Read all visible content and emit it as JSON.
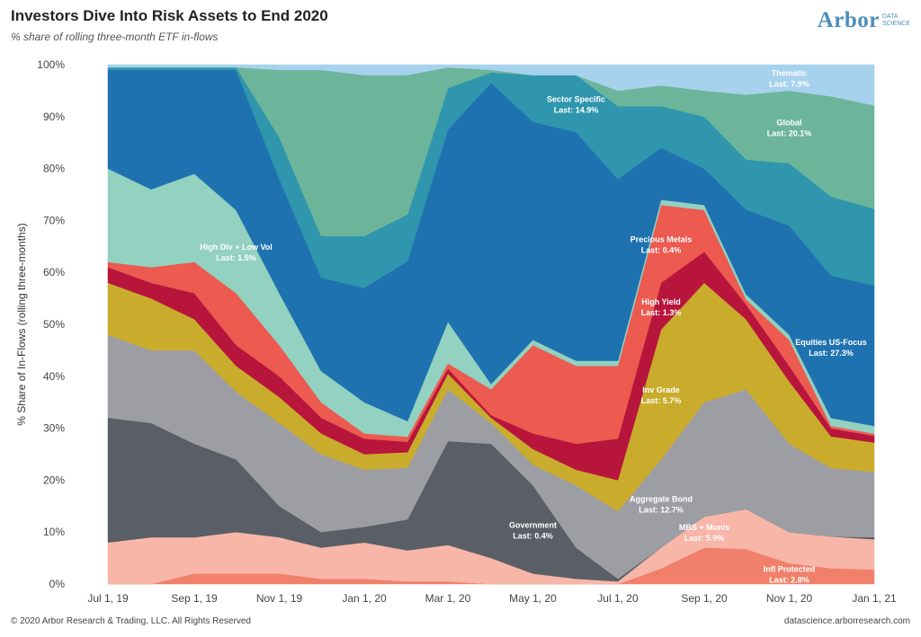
{
  "header": {
    "title": "Investors Dive Into Risk Assets to End 2020",
    "subtitle": "% share of rolling three-month ETF in-flows"
  },
  "logo": {
    "word": "Arbor",
    "sub_line1": "DATA",
    "sub_line2": "SCIENCE"
  },
  "footer": {
    "copyright": "© 2020 Arbor Research & Trading, LLC. All Rights Reserved",
    "site": "datascience.arborresearch.com"
  },
  "chart_data": {
    "type": "area",
    "stacked": true,
    "normalized": true,
    "title": "Investors Dive Into Risk Assets to End 2020",
    "subtitle": "% share of rolling three-month ETF in-flows",
    "ylabel": "% Share of In-Flows (rolling three-months)",
    "ylim": [
      0,
      100
    ],
    "yticks": [
      "0%",
      "10%",
      "20%",
      "30%",
      "40%",
      "50%",
      "60%",
      "70%",
      "80%",
      "90%",
      "100%"
    ],
    "xticks": [
      "Jul 1, 19",
      "Sep 1, 19",
      "Nov 1, 19",
      "Jan 1, 20",
      "Mar 1, 20",
      "May 1, 20",
      "Jul 1, 20",
      "Sep 1, 20",
      "Nov 1, 20",
      "Jan 1, 21"
    ],
    "x": [
      "2019-07-01",
      "2019-08-01",
      "2019-09-01",
      "2019-10-01",
      "2019-11-01",
      "2019-12-01",
      "2020-01-01",
      "2020-02-01",
      "2020-03-01",
      "2020-04-01",
      "2020-05-01",
      "2020-06-01",
      "2020-07-01",
      "2020-08-01",
      "2020-09-01",
      "2020-10-01",
      "2020-11-01",
      "2020-12-01",
      "2021-01-01"
    ],
    "grid": false,
    "legend": "none (direct labels)",
    "series": [
      {
        "name": "Infl Protected",
        "last": "Last: 2.8%",
        "color": "#f0806a",
        "values": [
          0,
          0,
          2,
          2,
          2,
          1,
          1,
          0.5,
          0.5,
          0,
          0,
          0,
          0,
          3,
          7,
          7,
          4,
          3,
          2.8
        ]
      },
      {
        "name": "MBS + Munis",
        "last": "Last: 5.9%",
        "color": "#f7b6a8",
        "values": [
          8,
          9,
          7,
          8,
          7,
          6,
          7,
          6,
          7,
          5,
          2,
          1,
          0.5,
          4,
          6,
          8,
          6,
          6,
          5.9
        ]
      },
      {
        "name": "Government",
        "last": "Last: 0.4%",
        "color": "#5a5e66",
        "values": [
          24,
          22,
          18,
          14,
          6,
          3,
          3,
          6,
          20,
          22,
          17,
          6,
          0.5,
          0,
          0,
          0,
          0,
          0,
          0.4
        ]
      },
      {
        "name": "Aggregate Bond",
        "last": "Last: 12.7%",
        "color": "#9d9ea3",
        "values": [
          16,
          14,
          18,
          13,
          16,
          15,
          11,
          10,
          10,
          4,
          4,
          12,
          13,
          17,
          22,
          24,
          17,
          13,
          12.7
        ]
      },
      {
        "name": "Inv Grade",
        "last": "Last: 5.7%",
        "color": "#c9ac2c",
        "values": [
          10,
          10,
          6,
          5,
          5,
          4,
          3,
          3,
          3,
          1,
          3,
          3,
          6,
          25,
          23,
          14,
          12,
          6,
          5.7
        ]
      },
      {
        "name": "High Yield",
        "last": "Last: 1.3%",
        "color": "#b8153c",
        "values": [
          3,
          3,
          5,
          4,
          4,
          3,
          3,
          2,
          1,
          0.5,
          3,
          5,
          8,
          9,
          6,
          3,
          3,
          1.5,
          1.3
        ]
      },
      {
        "name": "Precious Metals",
        "last": "Last: 0.4%",
        "color": "#ec5a50",
        "values": [
          1,
          3,
          6,
          10,
          6,
          3,
          1,
          1,
          1,
          5,
          17,
          15,
          14,
          15,
          8,
          1,
          5,
          0.5,
          0.4
        ]
      },
      {
        "name": "High Div + Low Vol",
        "last": "Last: 1.5%",
        "color": "#93d1c0",
        "values": [
          18,
          15,
          17,
          16,
          10,
          6,
          6,
          3,
          8,
          1,
          1,
          1,
          1,
          1,
          1,
          1,
          1,
          1.5,
          1.5
        ]
      },
      {
        "name": "Equities US-Focus",
        "last": "Last: 27.3%",
        "color": "#1f72b0",
        "values": [
          19,
          23,
          20,
          27,
          22,
          18,
          22,
          31,
          37,
          58,
          42,
          44,
          35,
          10,
          7,
          17,
          21,
          27,
          27.3
        ]
      },
      {
        "name": "Sector Specific",
        "last": "Last: 14.9%",
        "color": "#2f96ad",
        "values": [
          0.5,
          0.5,
          0.5,
          0.5,
          8,
          8,
          10,
          9,
          8,
          2,
          9,
          11,
          14,
          8,
          10,
          10,
          12,
          15,
          14.9
        ]
      },
      {
        "name": "Global",
        "last": "Last: 20.1%",
        "color": "#6db59a",
        "values": [
          0,
          0,
          0,
          0,
          13,
          32,
          31,
          27,
          4,
          0.5,
          0,
          0,
          3,
          4,
          5,
          13,
          14,
          19,
          20.1
        ]
      },
      {
        "name": "Thematic",
        "last": "Last: 7.9%",
        "color": "#a6d2ee",
        "values": [
          0.5,
          0.5,
          0.5,
          0.5,
          1,
          1,
          2,
          2,
          0.5,
          1,
          2,
          2,
          5,
          4,
          5,
          6,
          5,
          6,
          7.9
        ]
      }
    ]
  }
}
